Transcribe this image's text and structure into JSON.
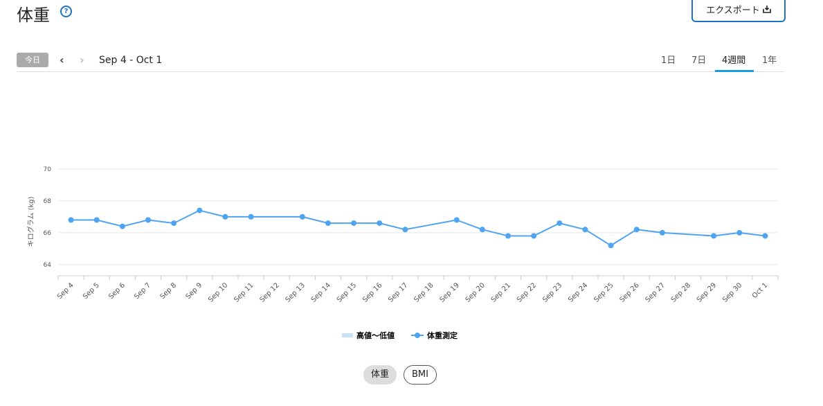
{
  "header": {
    "title": "体重",
    "export": "エクスポート"
  },
  "toolbar": {
    "today": "今日",
    "range": "Sep 4 - Oct 1",
    "tabs": [
      "1日",
      "7日",
      "4週間",
      "1年"
    ],
    "active_tab": 2
  },
  "chart_data": {
    "type": "line",
    "y_label": "キログラム (kg)",
    "categories": [
      "Sep 4",
      "Sep 5",
      "Sep 6",
      "Sep 7",
      "Sep 8",
      "Sep 9",
      "Sep 10",
      "Sep 11",
      "Sep 12",
      "Sep 13",
      "Sep 14",
      "Sep 15",
      "Sep 16",
      "Sep 17",
      "Sep 18",
      "Sep 19",
      "Sep 20",
      "Sep 21",
      "Sep 22",
      "Sep 23",
      "Sep 24",
      "Sep 25",
      "Sep 26",
      "Sep 27",
      "Sep 28",
      "Sep 29",
      "Sep 30",
      "Oct 1"
    ],
    "range_legend": {
      "name": "高値～低値",
      "color": "#c9e2fa"
    },
    "series": [
      {
        "name": "体重測定",
        "color": "#4ea4f0",
        "values": [
          66.8,
          66.8,
          66.4,
          66.8,
          66.6,
          67.4,
          67.0,
          67.0,
          null,
          67.0,
          66.6,
          66.6,
          66.6,
          66.2,
          null,
          66.8,
          66.2,
          65.8,
          65.8,
          66.6,
          66.2,
          65.2,
          66.2,
          66.0,
          null,
          65.8,
          66.0,
          65.8
        ]
      }
    ],
    "ylim": [
      63.3,
      70.5
    ],
    "yticks": [
      64,
      66,
      68,
      70
    ],
    "grid": true
  },
  "toggle": {
    "options": [
      "体重",
      "BMI"
    ],
    "active": 0
  }
}
